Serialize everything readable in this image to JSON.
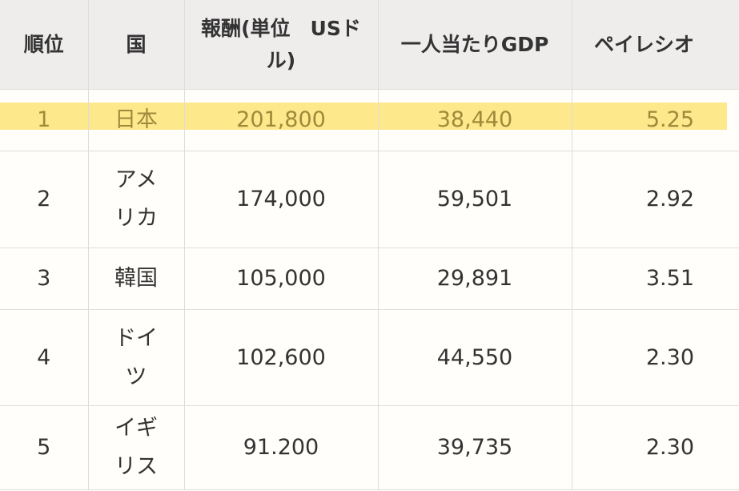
{
  "table": {
    "header": [
      "順位",
      "国",
      "報酬(単位　USドル)",
      "一人当たりGDP",
      "ペイレシオ"
    ],
    "rows": [
      [
        "1",
        "日本",
        "201,800",
        "38,440",
        "5.25"
      ],
      [
        "2",
        "アメリカ",
        "174,000",
        "59,501",
        "2.92"
      ],
      [
        "3",
        "韓国",
        "105,000",
        "29,891",
        "3.51"
      ],
      [
        "4",
        "ドイツ",
        "102,600",
        "44,550",
        "2.30"
      ],
      [
        "5",
        "イギリス",
        "91.200",
        "39,735",
        "2.30"
      ]
    ]
  }
}
